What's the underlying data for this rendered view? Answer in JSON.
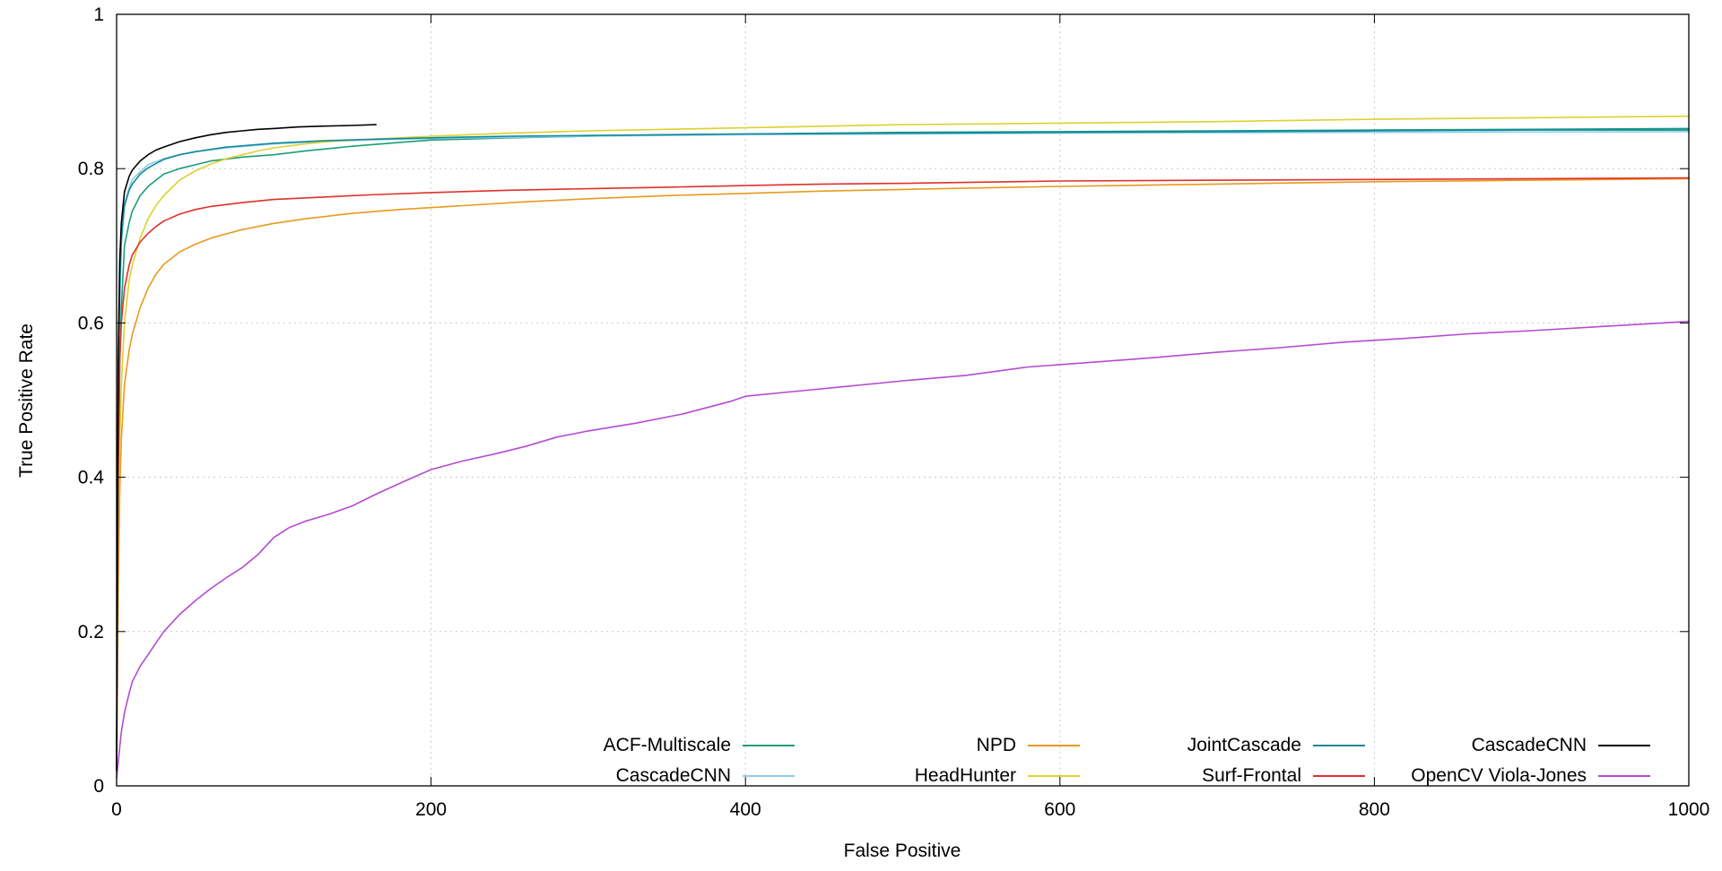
{
  "figure": {
    "background": "#ffffff",
    "grid_color": "#c9c9c9",
    "axis_color": "#000000"
  },
  "chart_data": {
    "type": "line",
    "title": "",
    "xlabel": "False Positive",
    "ylabel": "True Positive Rate",
    "xlim": [
      0,
      1000
    ],
    "ylim": [
      0,
      1
    ],
    "xticks": [
      0,
      200,
      400,
      600,
      800,
      1000
    ],
    "xtick_labels": [
      "0",
      "200",
      "400",
      "600",
      "800",
      "1000"
    ],
    "yticks": [
      0,
      0.2,
      0.4,
      0.6,
      0.8,
      1
    ],
    "ytick_labels": [
      "0",
      "0.2",
      "0.4",
      "0.6",
      "0.8",
      "1"
    ],
    "grid": true,
    "grid_style": "dashed",
    "legend_position": "inside-bottom-right",
    "series": [
      {
        "name": "ACF-Multiscale",
        "color": "#1b9e77",
        "points": [
          [
            0,
            0.02
          ],
          [
            1,
            0.35
          ],
          [
            2,
            0.55
          ],
          [
            3,
            0.62
          ],
          [
            5,
            0.7
          ],
          [
            8,
            0.73
          ],
          [
            10,
            0.745
          ],
          [
            15,
            0.765
          ],
          [
            20,
            0.777
          ],
          [
            30,
            0.793
          ],
          [
            40,
            0.8
          ],
          [
            50,
            0.805
          ],
          [
            60,
            0.81
          ],
          [
            80,
            0.815
          ],
          [
            100,
            0.818
          ],
          [
            120,
            0.823
          ],
          [
            150,
            0.829
          ],
          [
            180,
            0.834
          ],
          [
            200,
            0.837
          ],
          [
            250,
            0.84
          ],
          [
            300,
            0.842
          ],
          [
            350,
            0.844
          ],
          [
            400,
            0.845
          ],
          [
            500,
            0.847
          ],
          [
            600,
            0.848
          ],
          [
            700,
            0.849
          ],
          [
            800,
            0.85
          ],
          [
            900,
            0.851
          ],
          [
            1000,
            0.852
          ]
        ]
      },
      {
        "name": "CascadeCNN",
        "color": "#8ccfe7",
        "points": [
          [
            0,
            0.02
          ],
          [
            1,
            0.45
          ],
          [
            2,
            0.62
          ],
          [
            3,
            0.7
          ],
          [
            5,
            0.755
          ],
          [
            8,
            0.775
          ],
          [
            10,
            0.786
          ],
          [
            15,
            0.796
          ],
          [
            20,
            0.805
          ],
          [
            30,
            0.813
          ],
          [
            40,
            0.818
          ],
          [
            50,
            0.822
          ],
          [
            70,
            0.827
          ],
          [
            100,
            0.832
          ],
          [
            130,
            0.835
          ],
          [
            160,
            0.837
          ],
          [
            200,
            0.839
          ],
          [
            300,
            0.842
          ],
          [
            400,
            0.844
          ],
          [
            600,
            0.846
          ],
          [
            800,
            0.847
          ],
          [
            1000,
            0.848
          ]
        ]
      },
      {
        "name": "NPD",
        "color": "#e79a1e",
        "points": [
          [
            0,
            0.02
          ],
          [
            1,
            0.25
          ],
          [
            2,
            0.38
          ],
          [
            3,
            0.45
          ],
          [
            5,
            0.52
          ],
          [
            8,
            0.565
          ],
          [
            10,
            0.585
          ],
          [
            15,
            0.62
          ],
          [
            20,
            0.645
          ],
          [
            25,
            0.663
          ],
          [
            30,
            0.676
          ],
          [
            40,
            0.692
          ],
          [
            50,
            0.702
          ],
          [
            60,
            0.71
          ],
          [
            80,
            0.721
          ],
          [
            100,
            0.729
          ],
          [
            120,
            0.735
          ],
          [
            150,
            0.742
          ],
          [
            180,
            0.747
          ],
          [
            220,
            0.752
          ],
          [
            260,
            0.757
          ],
          [
            300,
            0.761
          ],
          [
            350,
            0.765
          ],
          [
            400,
            0.768
          ],
          [
            450,
            0.771
          ],
          [
            500,
            0.773
          ],
          [
            600,
            0.777
          ],
          [
            700,
            0.78
          ],
          [
            800,
            0.783
          ],
          [
            900,
            0.785
          ],
          [
            1000,
            0.787
          ]
        ]
      },
      {
        "name": "HeadHunter",
        "color": "#ddd22d",
        "points": [
          [
            0,
            0.02
          ],
          [
            1,
            0.3
          ],
          [
            2,
            0.45
          ],
          [
            3,
            0.52
          ],
          [
            5,
            0.6
          ],
          [
            8,
            0.655
          ],
          [
            10,
            0.675
          ],
          [
            15,
            0.71
          ],
          [
            20,
            0.735
          ],
          [
            25,
            0.752
          ],
          [
            30,
            0.765
          ],
          [
            40,
            0.785
          ],
          [
            50,
            0.797
          ],
          [
            60,
            0.806
          ],
          [
            70,
            0.813
          ],
          [
            80,
            0.818
          ],
          [
            90,
            0.823
          ],
          [
            100,
            0.827
          ],
          [
            120,
            0.832
          ],
          [
            140,
            0.836
          ],
          [
            160,
            0.838
          ],
          [
            180,
            0.84
          ],
          [
            200,
            0.842
          ],
          [
            250,
            0.846
          ],
          [
            300,
            0.849
          ],
          [
            350,
            0.851
          ],
          [
            400,
            0.853
          ],
          [
            500,
            0.857
          ],
          [
            600,
            0.859
          ],
          [
            700,
            0.861
          ],
          [
            800,
            0.864
          ],
          [
            900,
            0.866
          ],
          [
            1000,
            0.868
          ]
        ]
      },
      {
        "name": "JointCascade",
        "color": "#13889c",
        "points": [
          [
            0,
            0.02
          ],
          [
            1,
            0.5
          ],
          [
            2,
            0.65
          ],
          [
            3,
            0.71
          ],
          [
            5,
            0.752
          ],
          [
            8,
            0.772
          ],
          [
            10,
            0.78
          ],
          [
            15,
            0.793
          ],
          [
            20,
            0.801
          ],
          [
            30,
            0.812
          ],
          [
            40,
            0.818
          ],
          [
            50,
            0.822
          ],
          [
            70,
            0.828
          ],
          [
            100,
            0.833
          ],
          [
            130,
            0.836
          ],
          [
            160,
            0.838
          ],
          [
            200,
            0.84
          ],
          [
            250,
            0.842
          ],
          [
            300,
            0.843
          ],
          [
            400,
            0.845
          ],
          [
            500,
            0.846
          ],
          [
            600,
            0.847
          ],
          [
            700,
            0.848
          ],
          [
            800,
            0.849
          ],
          [
            900,
            0.85
          ],
          [
            1000,
            0.85
          ]
        ]
      },
      {
        "name": "Surf-Frontal",
        "color": "#e0312a",
        "points": [
          [
            0,
            0.02
          ],
          [
            1,
            0.4
          ],
          [
            2,
            0.55
          ],
          [
            3,
            0.6
          ],
          [
            5,
            0.645
          ],
          [
            8,
            0.675
          ],
          [
            10,
            0.688
          ],
          [
            15,
            0.705
          ],
          [
            20,
            0.716
          ],
          [
            25,
            0.725
          ],
          [
            30,
            0.732
          ],
          [
            40,
            0.741
          ],
          [
            50,
            0.747
          ],
          [
            60,
            0.751
          ],
          [
            80,
            0.756
          ],
          [
            100,
            0.76
          ],
          [
            130,
            0.763
          ],
          [
            160,
            0.766
          ],
          [
            200,
            0.769
          ],
          [
            250,
            0.772
          ],
          [
            300,
            0.774
          ],
          [
            350,
            0.776
          ],
          [
            400,
            0.778
          ],
          [
            450,
            0.78
          ],
          [
            500,
            0.781
          ],
          [
            600,
            0.784
          ],
          [
            700,
            0.785
          ],
          [
            800,
            0.786
          ],
          [
            900,
            0.787
          ],
          [
            1000,
            0.788
          ]
        ]
      },
      {
        "name": "OpenCV Viola-Jones",
        "color": "#b44bd2",
        "points": [
          [
            0,
            0.01
          ],
          [
            1,
            0.03
          ],
          [
            2,
            0.05
          ],
          [
            3,
            0.07
          ],
          [
            5,
            0.095
          ],
          [
            8,
            0.12
          ],
          [
            10,
            0.135
          ],
          [
            15,
            0.155
          ],
          [
            20,
            0.17
          ],
          [
            25,
            0.185
          ],
          [
            30,
            0.2
          ],
          [
            40,
            0.222
          ],
          [
            50,
            0.24
          ],
          [
            60,
            0.256
          ],
          [
            70,
            0.27
          ],
          [
            80,
            0.283
          ],
          [
            90,
            0.3
          ],
          [
            100,
            0.322
          ],
          [
            110,
            0.335
          ],
          [
            120,
            0.343
          ],
          [
            135,
            0.352
          ],
          [
            150,
            0.363
          ],
          [
            165,
            0.378
          ],
          [
            180,
            0.392
          ],
          [
            200,
            0.41
          ],
          [
            220,
            0.421
          ],
          [
            240,
            0.43
          ],
          [
            260,
            0.44
          ],
          [
            280,
            0.452
          ],
          [
            300,
            0.46
          ],
          [
            330,
            0.47
          ],
          [
            360,
            0.482
          ],
          [
            390,
            0.498
          ],
          [
            400,
            0.505
          ],
          [
            430,
            0.511
          ],
          [
            460,
            0.517
          ],
          [
            500,
            0.525
          ],
          [
            540,
            0.532
          ],
          [
            580,
            0.543
          ],
          [
            620,
            0.549
          ],
          [
            660,
            0.555
          ],
          [
            700,
            0.562
          ],
          [
            740,
            0.568
          ],
          [
            780,
            0.575
          ],
          [
            820,
            0.58
          ],
          [
            860,
            0.586
          ],
          [
            900,
            0.59
          ],
          [
            950,
            0.596
          ],
          [
            1000,
            0.602
          ]
        ]
      },
      {
        "name": "CascadeCNN",
        "color": "#000000",
        "points": [
          [
            0,
            0.02
          ],
          [
            1,
            0.55
          ],
          [
            2,
            0.68
          ],
          [
            3,
            0.73
          ],
          [
            5,
            0.77
          ],
          [
            8,
            0.79
          ],
          [
            10,
            0.798
          ],
          [
            15,
            0.81
          ],
          [
            20,
            0.818
          ],
          [
            25,
            0.824
          ],
          [
            30,
            0.828
          ],
          [
            40,
            0.835
          ],
          [
            50,
            0.84
          ],
          [
            60,
            0.844
          ],
          [
            70,
            0.847
          ],
          [
            80,
            0.849
          ],
          [
            90,
            0.851
          ],
          [
            100,
            0.852
          ],
          [
            115,
            0.854
          ],
          [
            130,
            0.855
          ],
          [
            150,
            0.856
          ],
          [
            165,
            0.857
          ]
        ]
      }
    ]
  },
  "legend": {
    "order": [
      0,
      2,
      4,
      7,
      1,
      3,
      5,
      6
    ]
  }
}
